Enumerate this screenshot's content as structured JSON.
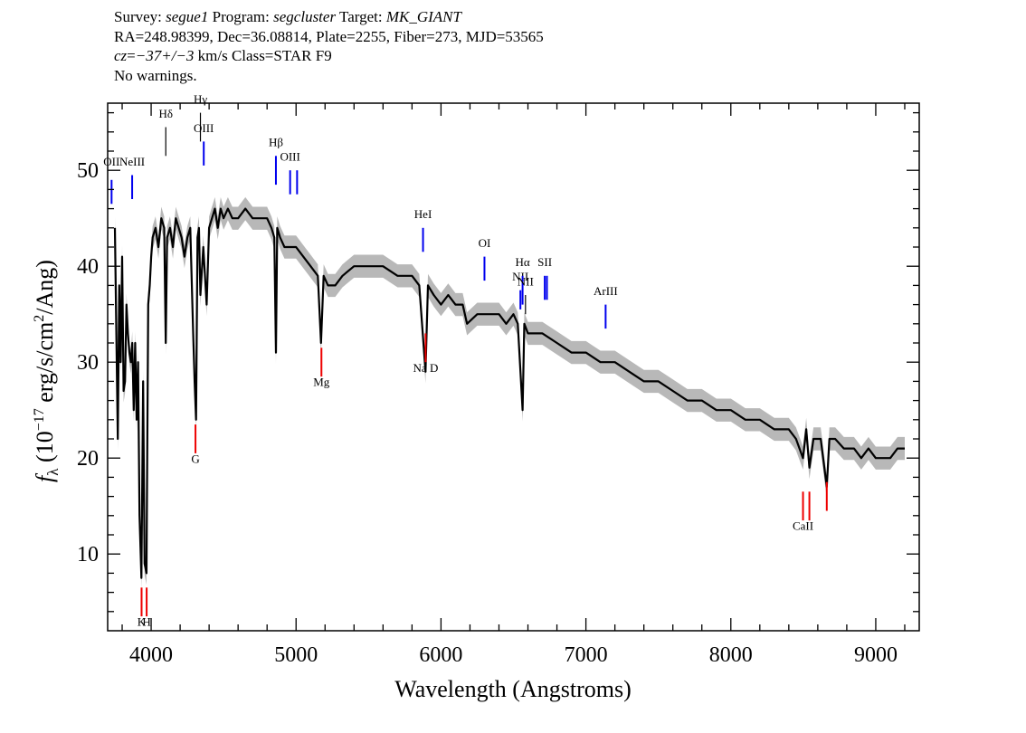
{
  "header": {
    "line1": {
      "survey_label": "Survey: ",
      "survey": "segue1",
      "program_label": " Program: ",
      "program": "segcluster",
      "target_label": " Target: ",
      "target": "MK_GIANT"
    },
    "line2": "RA=248.98399, Dec=36.08814, Plate=2255, Fiber=273, MJD=53565",
    "line3": {
      "cz_label": "cz",
      "cz_eq": "=",
      "cz_value": "−37+/−3",
      "rest": " km/s Class=STAR F9"
    },
    "line4": "No warnings."
  },
  "chart_data": {
    "type": "line",
    "title": "",
    "xlabel": "Wavelength (Angstroms)",
    "ylabel": "fλ (10⁻¹⁷ erg/s/cm²/Ang)",
    "xlim": [
      3700,
      9300
    ],
    "ylim": [
      2,
      57
    ],
    "x_ticks": [
      4000,
      5000,
      6000,
      7000,
      8000,
      9000
    ],
    "y_ticks": [
      10,
      20,
      30,
      40,
      50
    ],
    "grid": false,
    "colors": {
      "flux": "#000000",
      "error_band": "#b8b8b8",
      "emission_line": "#0000ee",
      "absorption_line": "#ee0000"
    },
    "flux": {
      "x": [
        3750,
        3770,
        3780,
        3790,
        3800,
        3810,
        3820,
        3830,
        3840,
        3850,
        3860,
        3870,
        3880,
        3890,
        3900,
        3910,
        3920,
        3933,
        3945,
        3955,
        3968,
        3980,
        3990,
        4000,
        4010,
        4030,
        4050,
        4070,
        4090,
        4101,
        4110,
        4130,
        4150,
        4170,
        4190,
        4210,
        4230,
        4250,
        4270,
        4290,
        4300,
        4310,
        4320,
        4330,
        4340,
        4360,
        4383,
        4400,
        4420,
        4440,
        4460,
        4480,
        4500,
        4530,
        4560,
        4600,
        4650,
        4700,
        4750,
        4800,
        4830,
        4850,
        4861,
        4870,
        4890,
        4920,
        4960,
        5000,
        5050,
        5100,
        5150,
        5172,
        5190,
        5220,
        5270,
        5320,
        5400,
        5500,
        5600,
        5700,
        5800,
        5850,
        5893,
        5910,
        5950,
        6000,
        6050,
        6100,
        6150,
        6180,
        6250,
        6300,
        6400,
        6450,
        6500,
        6530,
        6563,
        6575,
        6600,
        6700,
        6800,
        6900,
        7000,
        7100,
        7200,
        7300,
        7400,
        7500,
        7600,
        7700,
        7800,
        7900,
        8000,
        8100,
        8200,
        8300,
        8400,
        8450,
        8498,
        8520,
        8542,
        8570,
        8620,
        8662,
        8680,
        8720,
        8780,
        8850,
        8900,
        8950,
        9000,
        9050,
        9100,
        9150,
        9200
      ],
      "y": [
        44,
        22,
        38,
        30,
        41,
        27,
        28,
        36,
        33,
        31,
        30,
        32,
        25,
        32,
        24,
        30,
        14,
        7.5,
        28,
        9,
        8,
        36,
        38,
        41,
        43,
        44,
        42,
        45,
        44,
        32,
        43,
        44,
        42,
        45,
        44,
        43,
        41,
        43,
        44,
        33,
        28,
        24,
        43,
        44,
        37,
        42,
        36,
        44,
        45,
        46,
        44,
        46,
        45,
        46,
        45,
        45,
        46,
        45,
        45,
        45,
        44,
        43,
        31,
        44,
        43,
        42,
        42,
        42,
        41,
        40,
        39,
        32,
        39,
        38,
        38,
        39,
        40,
        40,
        40,
        39,
        39,
        38,
        29,
        38,
        37,
        36,
        37,
        36,
        36,
        34,
        35,
        35,
        35,
        34,
        35,
        34,
        25,
        34,
        33,
        33,
        32,
        31,
        31,
        30,
        30,
        29,
        28,
        28,
        27,
        26,
        26,
        25,
        25,
        24,
        24,
        23,
        23,
        22,
        20,
        23,
        19,
        22,
        22,
        17,
        22,
        22,
        21,
        21,
        20,
        21,
        20,
        20,
        20,
        21,
        21
      ]
    },
    "error_halfwidth": 1.2,
    "lines": [
      {
        "label": "OII",
        "x": 3727,
        "kind": "emission",
        "y_top": 49,
        "y_bottom": 46.5,
        "label_y": 50.5
      },
      {
        "label": "NeIII",
        "x": 3869,
        "kind": "emission",
        "y_top": 49.5,
        "y_bottom": 47,
        "label_y": 50.5
      },
      {
        "label": "Hδ",
        "x": 4101,
        "kind": "balmer",
        "y_top": 54.5,
        "y_bottom": 51.5,
        "label_y": 55.5
      },
      {
        "label": "Hγ",
        "x": 4340,
        "kind": "balmer",
        "y_top": 56,
        "y_bottom": 53,
        "label_y": 57
      },
      {
        "label": "OIII",
        "x": 4363,
        "kind": "emission",
        "y_top": 53,
        "y_bottom": 50.5,
        "label_y": 54
      },
      {
        "label": "Hβ",
        "x": 4861,
        "kind": "emission",
        "y_top": 51.5,
        "y_bottom": 48.5,
        "label_y": 52.5
      },
      {
        "label": "OIII",
        "x": 4959,
        "kind": "emission",
        "y_top": 50,
        "y_bottom": 47.5,
        "label_y": 51
      },
      {
        "label": "",
        "x": 5007,
        "kind": "emission",
        "y_top": 50,
        "y_bottom": 47.5,
        "label_y": 51
      },
      {
        "label": "HeI",
        "x": 5876,
        "kind": "emission",
        "y_top": 44,
        "y_bottom": 41.5,
        "label_y": 45
      },
      {
        "label": "OI",
        "x": 6300,
        "kind": "emission",
        "y_top": 41,
        "y_bottom": 38.5,
        "label_y": 42
      },
      {
        "label": "NII",
        "x": 6548,
        "kind": "emission",
        "y_top": 37.5,
        "y_bottom": 35.5,
        "label_y": 38.5
      },
      {
        "label": "Hα",
        "x": 6563,
        "kind": "emission",
        "y_top": 39,
        "y_bottom": 36,
        "label_y": 40
      },
      {
        "label": "NII",
        "x": 6583,
        "kind": "balmer",
        "y_top": 37,
        "y_bottom": 35,
        "label_y": 38
      },
      {
        "label": "SII",
        "x": 6716,
        "kind": "emission",
        "y_top": 39,
        "y_bottom": 36.5,
        "label_y": 40
      },
      {
        "label": "",
        "x": 6731,
        "kind": "emission",
        "y_top": 39,
        "y_bottom": 36.5,
        "label_y": 40
      },
      {
        "label": "ArIII",
        "x": 7136,
        "kind": "emission",
        "y_top": 36,
        "y_bottom": 33.5,
        "label_y": 37
      },
      {
        "label": "K",
        "x": 3934,
        "kind": "absorption",
        "y_top": 6.5,
        "y_bottom": 3.5,
        "label_y": 2.5
      },
      {
        "label": "H",
        "x": 3969,
        "kind": "absorption",
        "y_top": 6.5,
        "y_bottom": 3.5,
        "label_y": 2.5
      },
      {
        "label": "G",
        "x": 4306,
        "kind": "absorption",
        "y_top": 23.5,
        "y_bottom": 20.5,
        "label_y": 19.5
      },
      {
        "label": "Mg",
        "x": 5175,
        "kind": "absorption",
        "y_top": 31.5,
        "y_bottom": 28.5,
        "label_y": 27.5
      },
      {
        "label": "Na D",
        "x": 5894,
        "kind": "absorption",
        "y_top": 33,
        "y_bottom": 30,
        "label_y": 29
      },
      {
        "label": "CaII",
        "x": 8498,
        "kind": "absorption",
        "y_top": 16.5,
        "y_bottom": 13.5,
        "label_y": 12.5
      },
      {
        "label": "",
        "x": 8542,
        "kind": "absorption",
        "y_top": 16.5,
        "y_bottom": 13.5,
        "label_y": 12.5
      },
      {
        "label": "",
        "x": 8662,
        "kind": "absorption",
        "y_top": 17.5,
        "y_bottom": 14.5,
        "label_y": 12.5
      }
    ]
  }
}
